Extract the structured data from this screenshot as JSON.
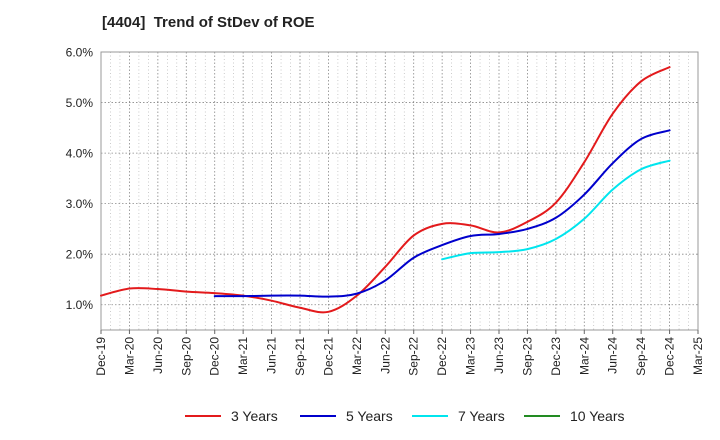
{
  "chart_data": {
    "type": "line",
    "title": "[4404]  Trend of StDev of ROE",
    "xlabel": "",
    "ylabel": "",
    "x": [
      "Dec-19",
      "Mar-20",
      "Jun-20",
      "Sep-20",
      "Dec-20",
      "Mar-21",
      "Jun-21",
      "Sep-21",
      "Dec-21",
      "Mar-22",
      "Jun-22",
      "Sep-22",
      "Dec-22",
      "Mar-23",
      "Jun-23",
      "Sep-23",
      "Dec-23",
      "Mar-24",
      "Jun-24",
      "Sep-24",
      "Dec-24",
      "Mar-25"
    ],
    "ylim": [
      0.5,
      6.0
    ],
    "yticks": [
      "1.0%",
      "2.0%",
      "3.0%",
      "4.0%",
      "5.0%",
      "6.0%"
    ],
    "ytick_values": [
      1.0,
      2.0,
      3.0,
      4.0,
      5.0,
      6.0
    ],
    "grid": true,
    "legend_position": "bottom",
    "series": [
      {
        "name": "3 Years",
        "color": "#e31a1c",
        "values": [
          1.18,
          1.32,
          1.31,
          1.26,
          1.23,
          1.18,
          1.08,
          0.94,
          0.86,
          1.18,
          1.75,
          2.37,
          2.6,
          2.57,
          2.43,
          2.64,
          3.02,
          3.82,
          4.78,
          5.42,
          5.7,
          null
        ]
      },
      {
        "name": "5 Years",
        "color": "#0000cc",
        "values": [
          null,
          null,
          null,
          null,
          1.17,
          1.17,
          1.18,
          1.18,
          1.16,
          1.22,
          1.48,
          1.93,
          2.18,
          2.36,
          2.4,
          2.5,
          2.72,
          3.18,
          3.8,
          4.28,
          4.45,
          null
        ]
      },
      {
        "name": "7 Years",
        "color": "#00e5ee",
        "values": [
          null,
          null,
          null,
          null,
          null,
          null,
          null,
          null,
          null,
          null,
          null,
          null,
          1.9,
          2.02,
          2.04,
          2.1,
          2.3,
          2.7,
          3.28,
          3.68,
          3.85,
          null
        ]
      },
      {
        "name": "10 Years",
        "color": "#228b22",
        "values": [
          null,
          null,
          null,
          null,
          null,
          null,
          null,
          null,
          null,
          null,
          null,
          null,
          null,
          null,
          null,
          null,
          null,
          null,
          null,
          null,
          null,
          null
        ]
      }
    ]
  }
}
